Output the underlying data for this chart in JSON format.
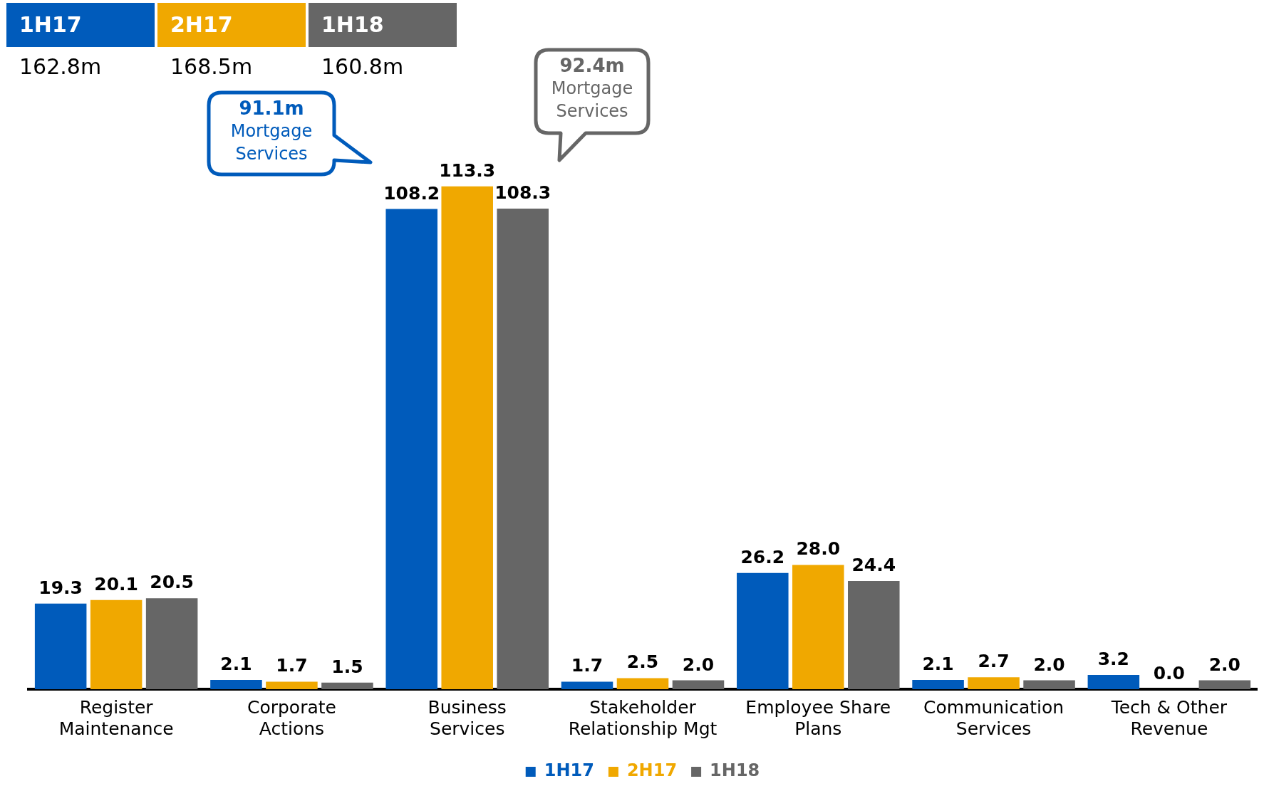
{
  "chart_data": {
    "type": "bar",
    "categories": [
      "Register Maintenance",
      "Corporate Actions",
      "Business Services",
      "Stakeholder Relationship Mgt",
      "Employee Share Plans",
      "Communication Services",
      "Tech & Other Revenue"
    ],
    "series": [
      {
        "name": "1H17",
        "color": "#005bbb",
        "values": [
          19.3,
          2.1,
          108.2,
          1.7,
          26.2,
          2.1,
          3.2
        ],
        "value_labels": [
          "19.3",
          "2.1",
          "108.2",
          "1.7",
          "26.2",
          "2.1",
          "3.2"
        ]
      },
      {
        "name": "2H17",
        "color": "#f0a800",
        "values": [
          20.1,
          1.7,
          113.3,
          2.5,
          28.0,
          2.7,
          0.0
        ],
        "value_labels": [
          "20.1",
          "1.7",
          "113.3",
          "2.5",
          "28.0",
          "2.7",
          "0.0"
        ]
      },
      {
        "name": "1H18",
        "color": "#666666",
        "values": [
          20.5,
          1.5,
          108.3,
          2.0,
          24.4,
          2.0,
          2.0
        ],
        "value_labels": [
          "20.5",
          "1.5",
          "108.3",
          "2.0",
          "24.4",
          "2.0",
          "2.0"
        ]
      }
    ],
    "legend": "bottom",
    "grid": false,
    "tick_labels": "x",
    "annotations": [
      "162.8m",
      "168.5m",
      "160.8m",
      "91.1m Mortgage Services",
      "92.4m Mortgage Services"
    ]
  }
}
